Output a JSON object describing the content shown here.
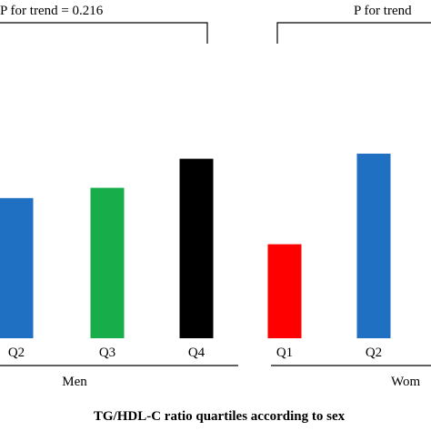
{
  "chart_data": {
    "type": "bar",
    "groups": [
      {
        "name": "Men",
        "categories": [
          "Q2",
          "Q3",
          "Q4"
        ],
        "values": [
          0.82,
          0.88,
          1.05
        ],
        "colors": [
          "#1f6fc3",
          "#16ad4a",
          "#000000"
        ],
        "trend_text": "P for trend = 0.216"
      },
      {
        "name": "Wom",
        "categories": [
          "Q1",
          "Q2"
        ],
        "values": [
          0.55,
          1.08
        ],
        "colors": [
          "#ff0000",
          "#1f6fc3"
        ],
        "trend_text": "P for trend"
      }
    ],
    "xlabel": "TG/HDL-C ratio quartiles according to sex",
    "ylabel": "",
    "ylim": [
      0,
      1.5
    ],
    "grid": false
  }
}
